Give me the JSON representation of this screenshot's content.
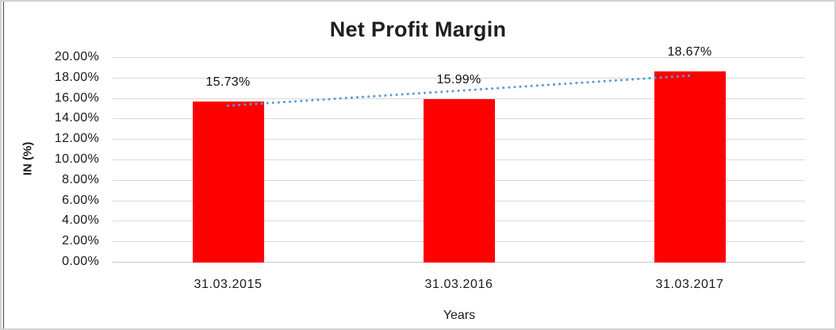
{
  "chart_data": {
    "type": "bar",
    "title": "Net Profit Margin",
    "categories": [
      "31.03.2015",
      "31.03.2016",
      "31.03.2017"
    ],
    "values": [
      15.73,
      15.99,
      18.67
    ],
    "data_labels": [
      "15.73%",
      "15.99%",
      "18.67%"
    ],
    "xlabel": "Years",
    "ylabel": "IN (%)",
    "ylim": [
      0,
      20
    ],
    "y_tick_step": 2,
    "y_tick_labels": [
      "0.00%",
      "2.00%",
      "4.00%",
      "6.00%",
      "8.00%",
      "10.00%",
      "12.00%",
      "14.00%",
      "16.00%",
      "18.00%",
      "20.00%"
    ],
    "bar_color": "#FF0000",
    "grid_color": "#D9D9D9",
    "text_color": "#1A1A1A",
    "trendline": {
      "type": "linear",
      "style": "dotted",
      "color": "#5B9BD5"
    },
    "legend": "none",
    "gridlines": true
  }
}
